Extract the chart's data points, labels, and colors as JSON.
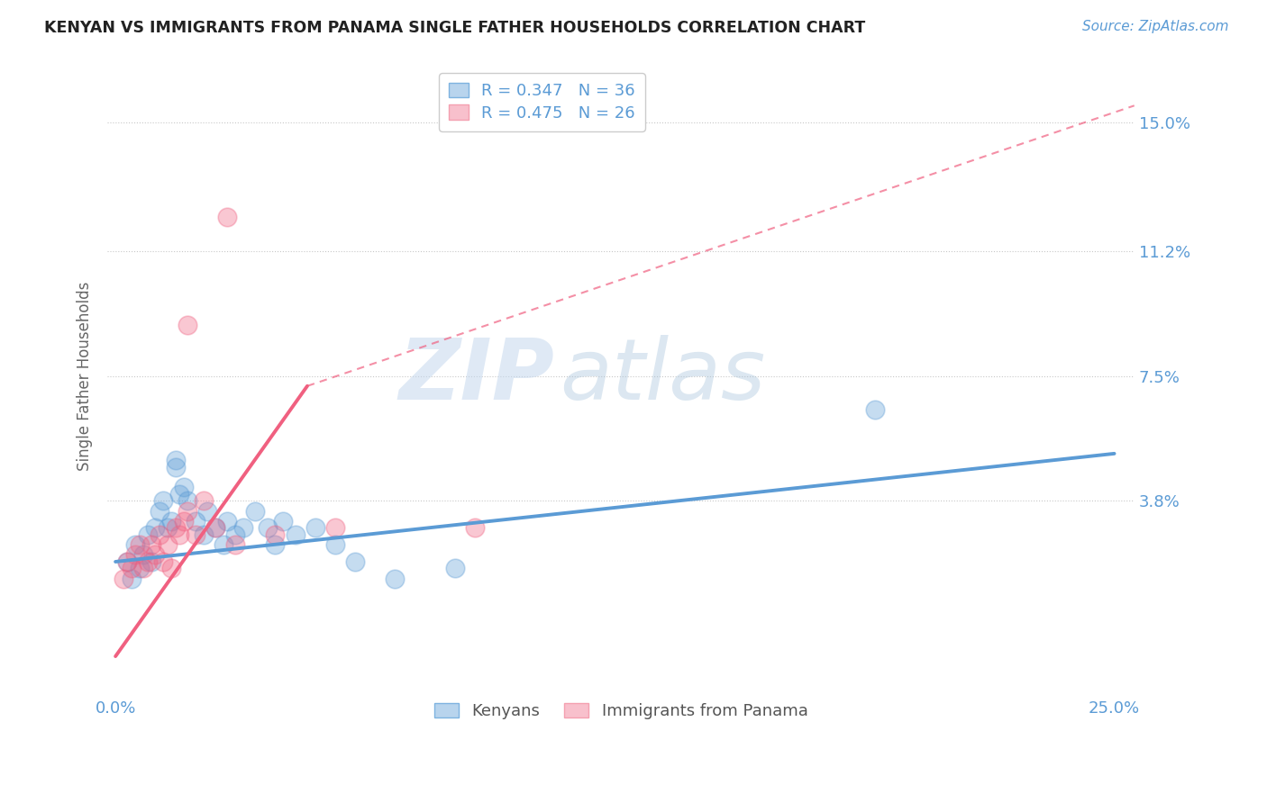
{
  "title": "KENYAN VS IMMIGRANTS FROM PANAMA SINGLE FATHER HOUSEHOLDS CORRELATION CHART",
  "source": "Source: ZipAtlas.com",
  "ylabel": "Single Father Households",
  "legend_entries": [
    {
      "label": "R = 0.347   N = 36",
      "color": "#7eb3e0"
    },
    {
      "label": "R = 0.475   N = 26",
      "color": "#f4a0b0"
    }
  ],
  "legend_labels": [
    "Kenyans",
    "Immigrants from Panama"
  ],
  "xlim": [
    -0.002,
    0.255
  ],
  "ylim": [
    -0.018,
    0.168
  ],
  "yticks": [
    0.038,
    0.075,
    0.112,
    0.15
  ],
  "ytick_labels": [
    "3.8%",
    "7.5%",
    "11.2%",
    "15.0%"
  ],
  "xticks": [
    0.0,
    0.05,
    0.1,
    0.15,
    0.2,
    0.25
  ],
  "xtick_labels": [
    "0.0%",
    "",
    "",
    "",
    "",
    "25.0%"
  ],
  "background_color": "#ffffff",
  "grid_color": "#c8c8c8",
  "blue_color": "#5b9bd5",
  "pink_color": "#f06080",
  "watermark_zip": "ZIP",
  "watermark_atlas": "atlas",
  "blue_scatter": [
    [
      0.003,
      0.02
    ],
    [
      0.004,
      0.015
    ],
    [
      0.005,
      0.025
    ],
    [
      0.006,
      0.018
    ],
    [
      0.007,
      0.022
    ],
    [
      0.008,
      0.028
    ],
    [
      0.009,
      0.02
    ],
    [
      0.01,
      0.03
    ],
    [
      0.011,
      0.035
    ],
    [
      0.012,
      0.038
    ],
    [
      0.013,
      0.03
    ],
    [
      0.014,
      0.032
    ],
    [
      0.015,
      0.048
    ],
    [
      0.015,
      0.05
    ],
    [
      0.016,
      0.04
    ],
    [
      0.017,
      0.042
    ],
    [
      0.018,
      0.038
    ],
    [
      0.02,
      0.032
    ],
    [
      0.022,
      0.028
    ],
    [
      0.023,
      0.035
    ],
    [
      0.025,
      0.03
    ],
    [
      0.027,
      0.025
    ],
    [
      0.028,
      0.032
    ],
    [
      0.03,
      0.028
    ],
    [
      0.032,
      0.03
    ],
    [
      0.035,
      0.035
    ],
    [
      0.038,
      0.03
    ],
    [
      0.04,
      0.025
    ],
    [
      0.042,
      0.032
    ],
    [
      0.045,
      0.028
    ],
    [
      0.05,
      0.03
    ],
    [
      0.055,
      0.025
    ],
    [
      0.06,
      0.02
    ],
    [
      0.07,
      0.015
    ],
    [
      0.085,
      0.018
    ],
    [
      0.19,
      0.065
    ]
  ],
  "pink_scatter": [
    [
      0.002,
      0.015
    ],
    [
      0.003,
      0.02
    ],
    [
      0.004,
      0.018
    ],
    [
      0.005,
      0.022
    ],
    [
      0.006,
      0.025
    ],
    [
      0.007,
      0.018
    ],
    [
      0.008,
      0.02
    ],
    [
      0.009,
      0.025
    ],
    [
      0.01,
      0.022
    ],
    [
      0.011,
      0.028
    ],
    [
      0.012,
      0.02
    ],
    [
      0.013,
      0.025
    ],
    [
      0.014,
      0.018
    ],
    [
      0.015,
      0.03
    ],
    [
      0.016,
      0.028
    ],
    [
      0.017,
      0.032
    ],
    [
      0.018,
      0.035
    ],
    [
      0.02,
      0.028
    ],
    [
      0.022,
      0.038
    ],
    [
      0.025,
      0.03
    ],
    [
      0.03,
      0.025
    ],
    [
      0.04,
      0.028
    ],
    [
      0.055,
      0.03
    ],
    [
      0.09,
      0.03
    ],
    [
      0.018,
      0.09
    ],
    [
      0.028,
      0.122
    ]
  ],
  "blue_line_solid": [
    [
      0.0,
      0.02
    ],
    [
      0.25,
      0.052
    ]
  ],
  "pink_line_solid": [
    [
      0.0,
      -0.008
    ],
    [
      0.048,
      0.072
    ]
  ],
  "pink_line_dashed": [
    [
      0.048,
      0.072
    ],
    [
      0.255,
      0.155
    ]
  ]
}
